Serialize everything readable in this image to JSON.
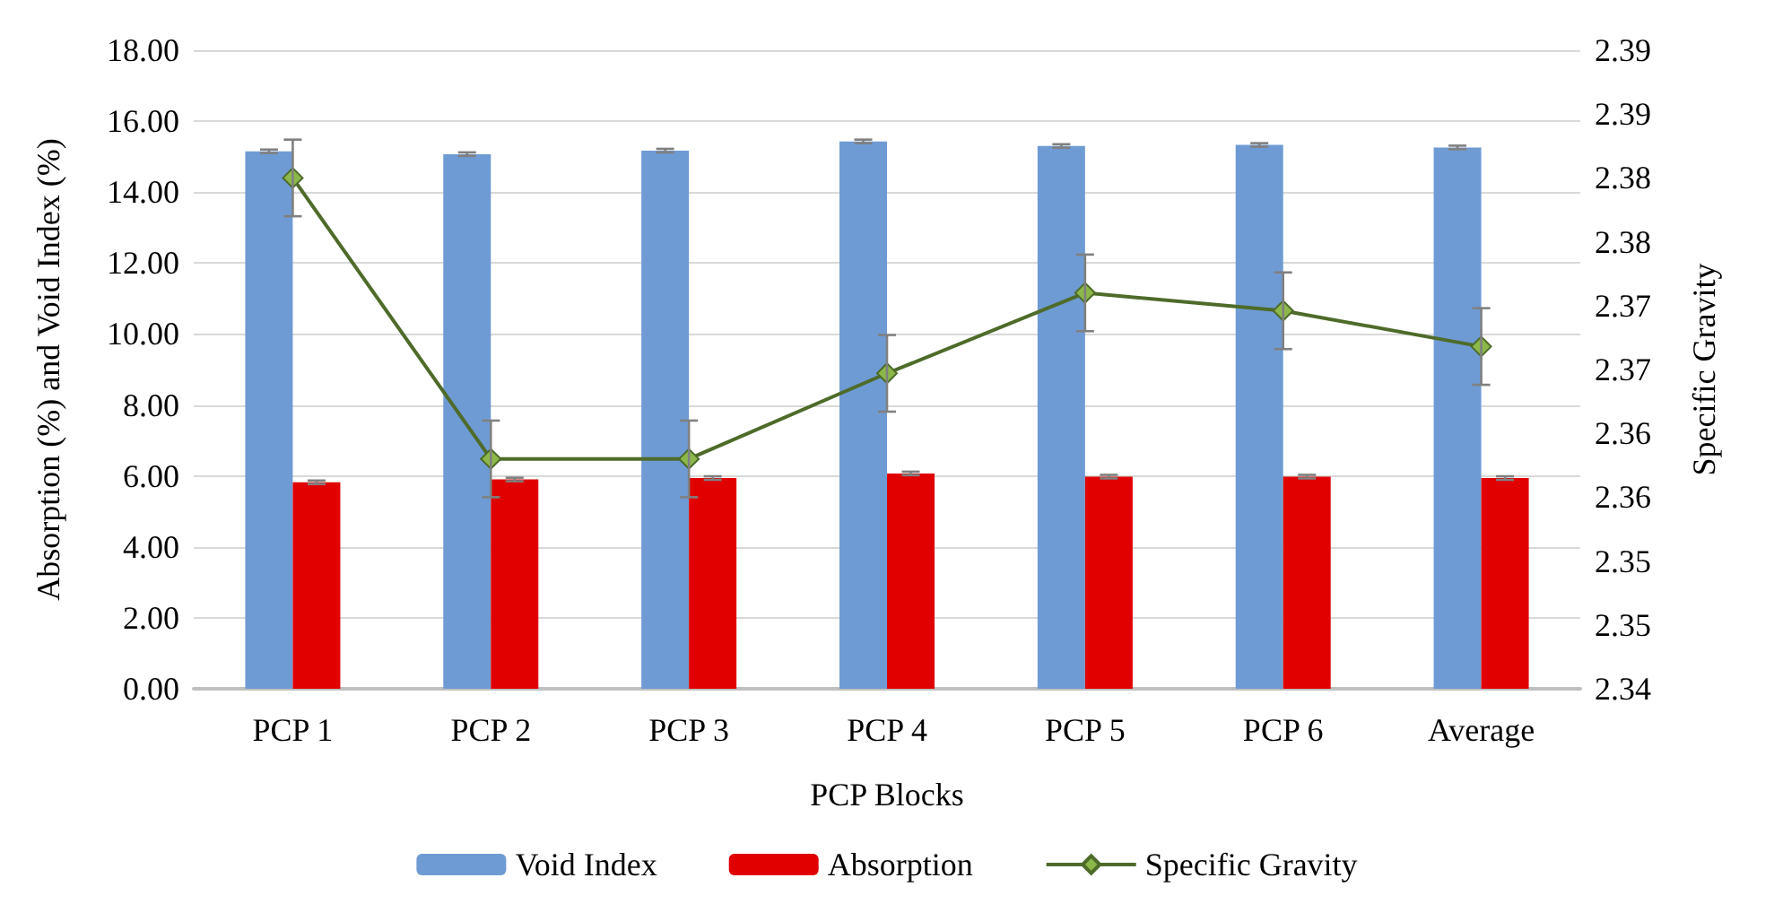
{
  "chart_data": {
    "type": "bar",
    "xlabel": "PCP Blocks",
    "ylabel": "Absorption (%) and Void Index (%)",
    "y2label": "Specific Gravity",
    "categories": [
      "PCP 1",
      "PCP 2",
      "PCP 3",
      "PCP 4",
      "PCP 5",
      "PCP 6",
      "Average"
    ],
    "series": [
      {
        "name": "Void Index",
        "color": "#6f9bd4",
        "values": [
          15.15,
          15.07,
          15.17,
          15.43,
          15.3,
          15.33,
          15.26
        ],
        "errors": [
          0.05,
          0.05,
          0.05,
          0.05,
          0.05,
          0.05,
          0.05
        ]
      },
      {
        "name": "Absorption",
        "color": "#e00000",
        "values": [
          5.82,
          5.9,
          5.94,
          6.07,
          5.98,
          5.98,
          5.94
        ],
        "errors": [
          0.05,
          0.05,
          0.05,
          0.05,
          0.05,
          0.05,
          0.05
        ]
      },
      {
        "name": "Specific Gravity",
        "type": "line",
        "axis": "y2",
        "color": "#4e6b2a",
        "marker": "diamond",
        "values": [
          2.38,
          2.358,
          2.358,
          2.3647,
          2.371,
          2.3696,
          2.3668
        ],
        "errors": [
          0.003,
          0.003,
          0.003,
          0.003,
          0.003,
          0.003,
          0.003
        ]
      }
    ],
    "ylim": [
      0,
      18
    ],
    "yticks": [
      {
        "value": 0,
        "label": "0.00"
      },
      {
        "value": 2,
        "label": "2.00"
      },
      {
        "value": 4,
        "label": "4.00"
      },
      {
        "value": 6,
        "label": "6.00"
      },
      {
        "value": 8,
        "label": "8.00"
      },
      {
        "value": 10,
        "label": "10.00"
      },
      {
        "value": 12,
        "label": "12.00"
      },
      {
        "value": 14,
        "label": "14.00"
      },
      {
        "value": 16,
        "label": "16.00"
      },
      {
        "value": 18,
        "label": "18.00"
      }
    ],
    "y2lim": [
      2.34,
      2.39
    ],
    "y2ticks": [
      {
        "value": 2.34,
        "label": "2.34"
      },
      {
        "value": 2.345,
        "label": "2.35"
      },
      {
        "value": 2.35,
        "label": "2.35"
      },
      {
        "value": 2.355,
        "label": "2.36"
      },
      {
        "value": 2.36,
        "label": "2.36"
      },
      {
        "value": 2.365,
        "label": "2.37"
      },
      {
        "value": 2.37,
        "label": "2.37"
      },
      {
        "value": 2.375,
        "label": "2.38"
      },
      {
        "value": 2.38,
        "label": "2.38"
      },
      {
        "value": 2.385,
        "label": "2.39"
      },
      {
        "value": 2.39,
        "label": "2.39"
      }
    ],
    "grid": "y",
    "legend": "bottom"
  }
}
